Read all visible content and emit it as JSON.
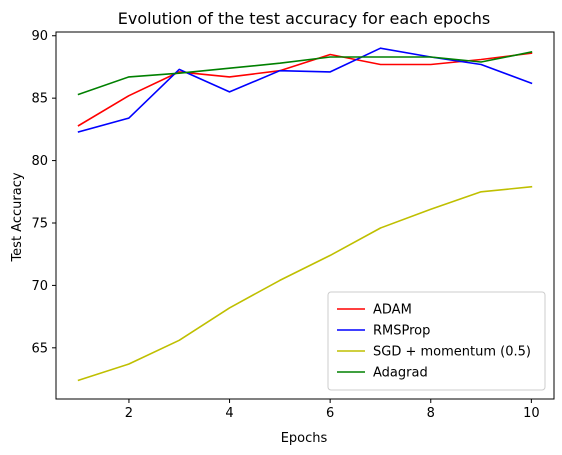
{
  "chart_data": {
    "type": "line",
    "title": "Evolution of the test accuracy for each epochs",
    "xlabel": "Epochs",
    "ylabel": "Test Accuracy",
    "x": [
      1,
      2,
      3,
      4,
      5,
      6,
      7,
      8,
      9,
      10
    ],
    "xlim": [
      0.55,
      10.45
    ],
    "ylim": [
      60.9,
      90.3
    ],
    "xticks": [
      2,
      4,
      6,
      8,
      10
    ],
    "yticks": [
      65,
      70,
      75,
      80,
      85,
      90
    ],
    "grid": false,
    "legend_position": "lower-right",
    "series": [
      {
        "name": "ADAM",
        "color": "#ff0000",
        "values": [
          82.8,
          85.2,
          87.1,
          86.7,
          87.2,
          88.5,
          87.7,
          87.7,
          88.1,
          88.6
        ]
      },
      {
        "name": "RMSProp",
        "color": "#0000ff",
        "values": [
          82.3,
          83.4,
          87.3,
          85.5,
          87.2,
          87.1,
          89.0,
          88.3,
          87.7,
          86.2
        ]
      },
      {
        "name": "SGD + momentum (0.5)",
        "color": "#bfbf00",
        "values": [
          62.4,
          63.7,
          65.6,
          68.2,
          70.4,
          72.4,
          74.6,
          76.1,
          77.5,
          77.9
        ]
      },
      {
        "name": "Adagrad",
        "color": "#008000",
        "values": [
          85.3,
          86.7,
          87.0,
          87.4,
          87.8,
          88.3,
          88.3,
          88.3,
          87.9,
          88.7
        ]
      }
    ]
  }
}
